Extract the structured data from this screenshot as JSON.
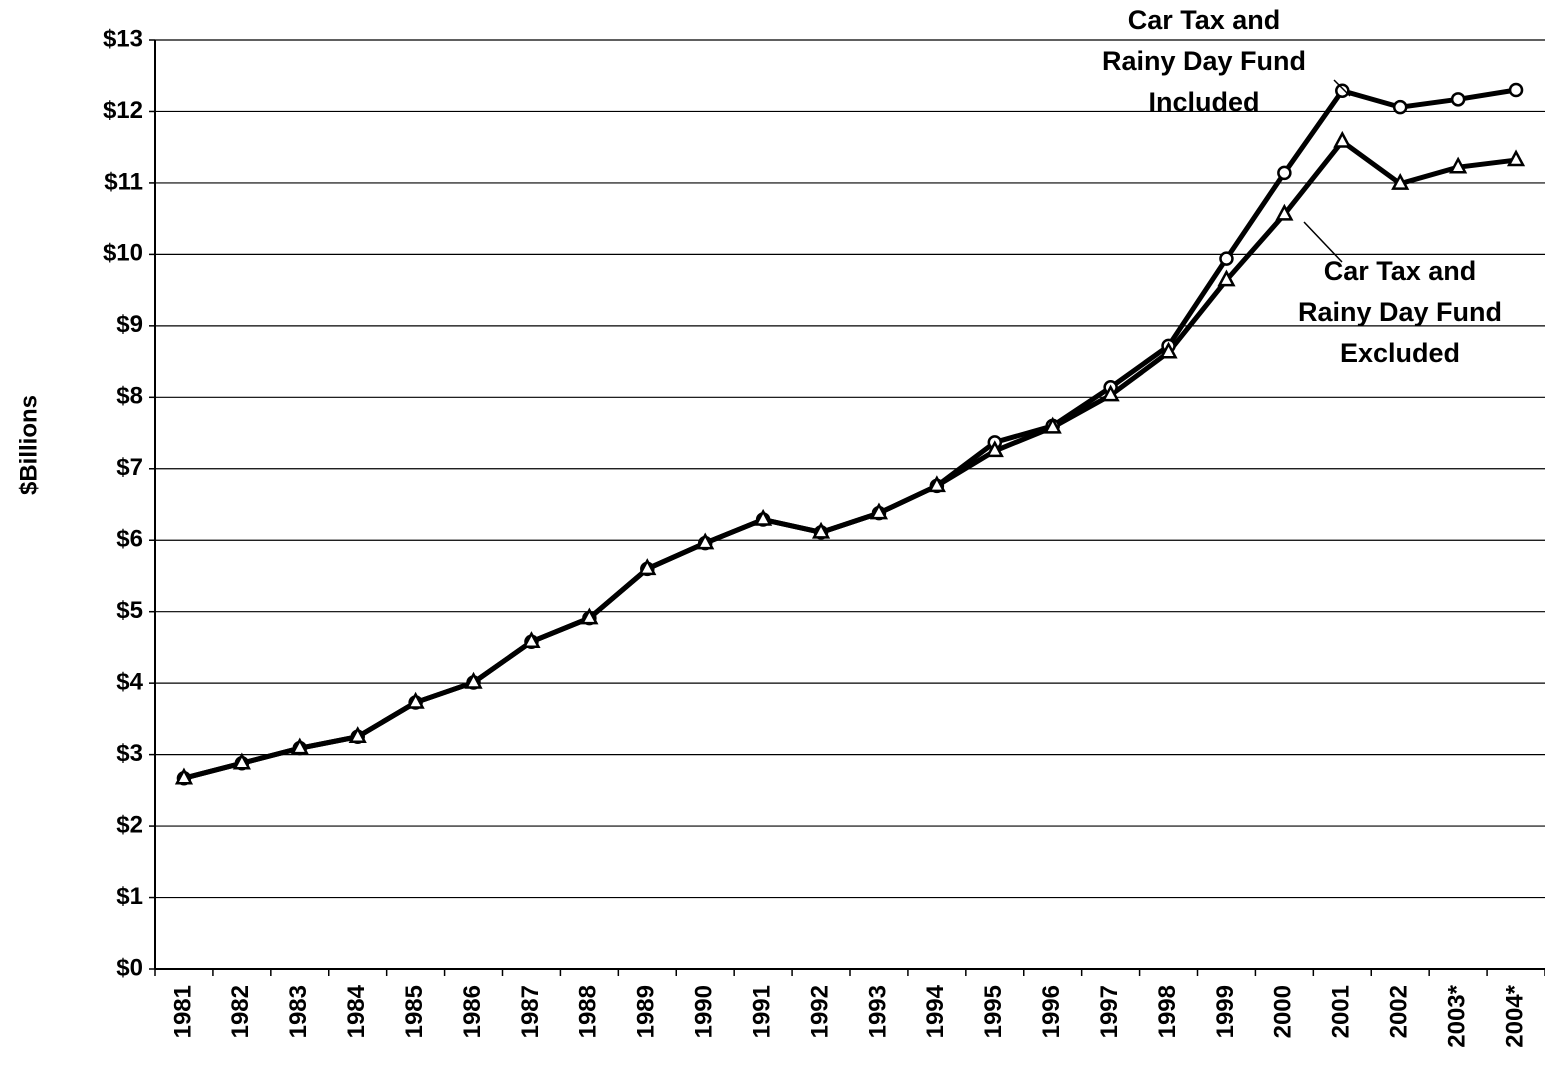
{
  "chart_data": {
    "type": "line",
    "y_label": "$Billions",
    "categories": [
      "1981",
      "1982",
      "1983",
      "1984",
      "1985",
      "1986",
      "1987",
      "1988",
      "1989",
      "1990",
      "1991",
      "1992",
      "1993",
      "1994",
      "1995",
      "1996",
      "1997",
      "1998",
      "1999",
      "2000",
      "2001",
      "2002",
      "2003*",
      "2004*"
    ],
    "series": [
      {
        "color": "#000000",
        "marker": "circle",
        "values": [
          2.67,
          2.88,
          3.09,
          3.25,
          3.73,
          4.01,
          4.58,
          4.91,
          5.6,
          5.96,
          6.29,
          6.11,
          6.38,
          6.76,
          7.37,
          7.6,
          8.14,
          8.72,
          9.94,
          11.14,
          12.29,
          12.06,
          12.17,
          12.3
        ]
      },
      {
        "color": "#000000",
        "marker": "triangle",
        "values": [
          2.67,
          2.88,
          3.09,
          3.25,
          3.73,
          4.01,
          4.58,
          4.91,
          5.6,
          5.96,
          6.29,
          6.11,
          6.38,
          6.76,
          7.25,
          7.58,
          8.03,
          8.63,
          9.64,
          10.56,
          11.58,
          10.99,
          11.22,
          11.32
        ]
      }
    ],
    "annotations": [
      {
        "lines": [
          "Car Tax and",
          "Rainy Day Fund",
          "Included"
        ]
      },
      {
        "lines": [
          "Car Tax and",
          "Rainy Day Fund",
          "Excluded"
        ]
      }
    ],
    "ylim": [
      0,
      13
    ],
    "yticks": [
      {
        "value": 0,
        "label": "$0"
      },
      {
        "value": 1,
        "label": "$1"
      },
      {
        "value": 2,
        "label": "$2"
      },
      {
        "value": 3,
        "label": "$3"
      },
      {
        "value": 4,
        "label": "$4"
      },
      {
        "value": 5,
        "label": "$5"
      },
      {
        "value": 6,
        "label": "$6"
      },
      {
        "value": 7,
        "label": "$7"
      },
      {
        "value": 8,
        "label": "$8"
      },
      {
        "value": 9,
        "label": "$9"
      },
      {
        "value": 10,
        "label": "$10"
      },
      {
        "value": 11,
        "label": "$11"
      },
      {
        "value": 12,
        "label": "$12"
      },
      {
        "value": 13,
        "label": "$13"
      }
    ],
    "grid": true
  }
}
